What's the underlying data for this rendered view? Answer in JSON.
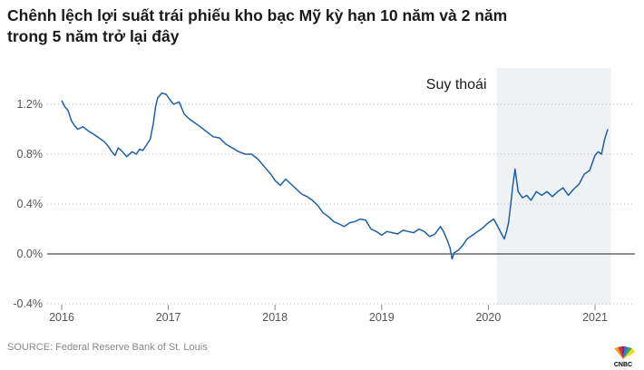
{
  "title_line1": "Chênh lệch lợi suất trái phiếu kho bạc Mỹ kỳ hạn 10 năm và 2 năm",
  "title_line2": "trong 5 năm trở lại đây",
  "source": "SOURCE: Federal Reserve Bank of St. Louis",
  "logo_text": "CNBC",
  "chart_data": {
    "type": "line",
    "title": "Chênh lệch lợi suất trái phiếu kho bạc Mỹ kỳ hạn 10 năm và 2 năm trong 5 năm trở lại đây",
    "xlabel": "",
    "ylabel": "",
    "xlim": [
      2016.0,
      2021.4
    ],
    "ylim": [
      -0.4,
      1.45
    ],
    "x_ticks": [
      2016,
      2017,
      2018,
      2019,
      2020,
      2021
    ],
    "y_ticks": [
      {
        "value": 1.2,
        "label": "1.2%"
      },
      {
        "value": 0.8,
        "label": "0.8%"
      },
      {
        "value": 0.4,
        "label": "0.4%"
      },
      {
        "value": 0.0,
        "label": "0.0%"
      },
      {
        "value": -0.4,
        "label": "-0.4%"
      }
    ],
    "grid": "horizontal-dotted",
    "line_color": "#1f5fa3",
    "shaded_region": {
      "x_start": 2020.08,
      "x_end": 2021.15,
      "label": "Suy thoái",
      "color": "#eef2f5"
    },
    "series": [
      {
        "x": [
          2016.0,
          2016.03,
          2016.06,
          2016.09,
          2016.12,
          2016.15,
          2016.2,
          2016.26,
          2016.3,
          2016.35,
          2016.4,
          2016.44,
          2016.47,
          2016.5,
          2016.53,
          2016.57,
          2016.61,
          2016.66,
          2016.7,
          2016.73,
          2016.76,
          2016.8,
          2016.83,
          2016.86,
          2016.88,
          2016.9,
          2016.94,
          2016.98,
          2017.02,
          2017.05,
          2017.1,
          2017.15,
          2017.2,
          2017.25,
          2017.3,
          2017.36,
          2017.42,
          2017.48,
          2017.54,
          2017.6,
          2017.66,
          2017.72,
          2017.78,
          2017.84,
          2017.9,
          2017.96,
          2018.0,
          2018.05,
          2018.1,
          2018.15,
          2018.2,
          2018.25,
          2018.3,
          2018.35,
          2018.4,
          2018.45,
          2018.5,
          2018.55,
          2018.6,
          2018.65,
          2018.7,
          2018.75,
          2018.8,
          2018.85,
          2018.9,
          2018.95,
          2019.0,
          2019.05,
          2019.1,
          2019.15,
          2019.2,
          2019.25,
          2019.3,
          2019.35,
          2019.4,
          2019.45,
          2019.5,
          2019.55,
          2019.58,
          2019.61,
          2019.64,
          2019.66,
          2019.68,
          2019.72,
          2019.76,
          2019.8,
          2019.85,
          2019.9,
          2019.95,
          2020.0,
          2020.05,
          2020.1,
          2020.13,
          2020.15,
          2020.17,
          2020.19,
          2020.21,
          2020.23,
          2020.25,
          2020.28,
          2020.32,
          2020.36,
          2020.4,
          2020.45,
          2020.5,
          2020.55,
          2020.6,
          2020.65,
          2020.7,
          2020.75,
          2020.8,
          2020.85,
          2020.9,
          2020.95,
          2021.0,
          2021.03,
          2021.06,
          2021.09,
          2021.12
        ],
        "y": [
          1.23,
          1.18,
          1.15,
          1.07,
          1.03,
          1.0,
          1.02,
          0.98,
          0.96,
          0.93,
          0.9,
          0.86,
          0.82,
          0.79,
          0.85,
          0.82,
          0.78,
          0.82,
          0.8,
          0.84,
          0.83,
          0.88,
          0.92,
          1.05,
          1.18,
          1.25,
          1.29,
          1.28,
          1.23,
          1.2,
          1.22,
          1.12,
          1.08,
          1.05,
          1.02,
          0.98,
          0.94,
          0.93,
          0.88,
          0.85,
          0.82,
          0.8,
          0.8,
          0.76,
          0.7,
          0.64,
          0.59,
          0.55,
          0.6,
          0.56,
          0.52,
          0.48,
          0.46,
          0.43,
          0.39,
          0.33,
          0.3,
          0.26,
          0.24,
          0.22,
          0.25,
          0.26,
          0.28,
          0.27,
          0.2,
          0.18,
          0.15,
          0.18,
          0.17,
          0.16,
          0.19,
          0.18,
          0.17,
          0.2,
          0.18,
          0.14,
          0.16,
          0.22,
          0.18,
          0.12,
          0.05,
          -0.04,
          0.01,
          0.03,
          0.07,
          0.12,
          0.15,
          0.18,
          0.21,
          0.25,
          0.28,
          0.2,
          0.15,
          0.12,
          0.18,
          0.25,
          0.4,
          0.55,
          0.68,
          0.5,
          0.45,
          0.47,
          0.43,
          0.5,
          0.47,
          0.5,
          0.46,
          0.5,
          0.53,
          0.47,
          0.52,
          0.56,
          0.64,
          0.67,
          0.79,
          0.82,
          0.8,
          0.92,
          1.0
        ]
      }
    ]
  }
}
